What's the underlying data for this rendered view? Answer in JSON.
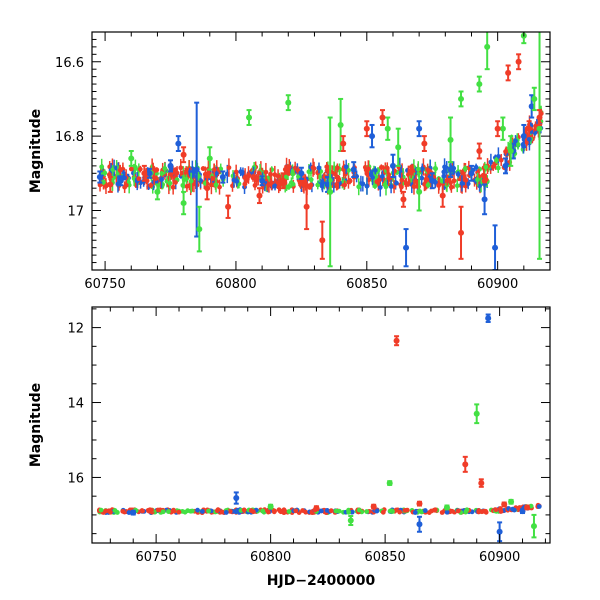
{
  "colors": {
    "blue": "#1f5fd8",
    "green": "#43e043",
    "red": "#f03c28"
  },
  "chart_data": [
    {
      "type": "scatter",
      "title": "",
      "xlabel": "",
      "ylabel": "Magnitude",
      "xlim": [
        60745,
        60920
      ],
      "ylim": [
        17.16,
        16.52
      ],
      "y_inverted": true,
      "grid": false,
      "error_bars": true,
      "xticks": [
        "60750",
        "60800",
        "60850",
        "60900"
      ],
      "xtick_values": [
        60750,
        60800,
        60850,
        60900
      ],
      "yticks": [
        "16.6",
        "16.8",
        "17"
      ],
      "ytick_values": [
        16.6,
        16.8,
        17.0
      ],
      "series": [
        {
          "color": "blue",
          "points": [
            [
              60748,
              16.91,
              0.015
            ],
            [
              60756,
              16.92,
              0.012
            ],
            [
              60767,
              16.9,
              0.012
            ],
            [
              60775,
              16.88,
              0.015
            ],
            [
              60778,
              16.82,
              0.02
            ],
            [
              60785,
              16.89,
              0.18
            ],
            [
              60795,
              16.91,
              0.015
            ],
            [
              60810,
              16.92,
              0.012
            ],
            [
              60825,
              16.9,
              0.015
            ],
            [
              60835,
              16.93,
              0.02
            ],
            [
              60845,
              16.89,
              0.02
            ],
            [
              60852,
              16.8,
              0.03
            ],
            [
              60860,
              16.88,
              0.03
            ],
            [
              60865,
              17.1,
              0.05
            ],
            [
              60870,
              16.78,
              0.02
            ],
            [
              60875,
              16.92,
              0.02
            ],
            [
              60882,
              16.89,
              0.02
            ],
            [
              60890,
              16.9,
              0.02
            ],
            [
              60895,
              16.97,
              0.04
            ],
            [
              60899,
              17.1,
              0.06
            ],
            [
              60903,
              16.88,
              0.02
            ],
            [
              60906,
              16.84,
              0.02
            ],
            [
              60910,
              16.8,
              0.03
            ],
            [
              60913,
              16.72,
              0.03
            ]
          ]
        },
        {
          "color": "green",
          "points": [
            [
              60760,
              16.86,
              0.02
            ],
            [
              60770,
              16.95,
              0.02
            ],
            [
              60780,
              16.98,
              0.03
            ],
            [
              60786,
              17.05,
              0.06
            ],
            [
              60790,
              16.86,
              0.03
            ],
            [
              60805,
              16.75,
              0.02
            ],
            [
              60820,
              16.71,
              0.02
            ],
            [
              60836,
              16.95,
              0.2
            ],
            [
              60840,
              16.77,
              0.07
            ],
            [
              60858,
              16.78,
              0.03
            ],
            [
              60862,
              16.83,
              0.05
            ],
            [
              60870,
              16.95,
              0.05
            ],
            [
              60882,
              16.81,
              0.06
            ],
            [
              60886,
              16.7,
              0.02
            ],
            [
              60893,
              16.66,
              0.02
            ],
            [
              60896,
              16.56,
              0.06
            ],
            [
              60902,
              16.78,
              0.03
            ],
            [
              60905,
              16.84,
              0.04
            ],
            [
              60910,
              16.53,
              0.02
            ],
            [
              60914,
              16.7,
              0.03
            ],
            [
              60916,
              16.78,
              0.35
            ]
          ]
        },
        {
          "color": "red",
          "points": [
            [
              60752,
              16.93,
              0.02
            ],
            [
              60765,
              16.9,
              0.02
            ],
            [
              60780,
              16.85,
              0.02
            ],
            [
              60789,
              16.94,
              0.03
            ],
            [
              60797,
              16.99,
              0.03
            ],
            [
              60809,
              16.96,
              0.02
            ],
            [
              60818,
              16.92,
              0.02
            ],
            [
              60827,
              16.99,
              0.06
            ],
            [
              60833,
              17.08,
              0.05
            ],
            [
              60841,
              16.82,
              0.02
            ],
            [
              60850,
              16.78,
              0.02
            ],
            [
              60856,
              16.75,
              0.02
            ],
            [
              60864,
              16.97,
              0.02
            ],
            [
              60872,
              16.82,
              0.02
            ],
            [
              60879,
              16.96,
              0.03
            ],
            [
              60886,
              17.06,
              0.07
            ],
            [
              60893,
              16.84,
              0.02
            ],
            [
              60900,
              16.78,
              0.02
            ],
            [
              60904,
              16.63,
              0.02
            ],
            [
              60908,
              16.6,
              0.02
            ],
            [
              60912,
              16.78,
              0.02
            ],
            [
              60916,
              16.75,
              0.02
            ]
          ]
        }
      ]
    },
    {
      "type": "scatter",
      "title": "",
      "xlabel": "HJD−2400000",
      "ylabel": "Magnitude",
      "xlim": [
        60722,
        60922
      ],
      "ylim": [
        17.75,
        11.45
      ],
      "y_inverted": true,
      "grid": false,
      "error_bars": true,
      "xticks": [
        "60750",
        "60800",
        "60850",
        "60900"
      ],
      "xtick_values": [
        60750,
        60800,
        60850,
        60900
      ],
      "yticks": [
        "12",
        "14",
        "16"
      ],
      "ytick_values": [
        12,
        14,
        16
      ],
      "series": [
        {
          "color": "blue",
          "points": [
            [
              60740,
              16.94,
              0.05
            ],
            [
              60785,
              16.55,
              0.15
            ],
            [
              60865,
              17.25,
              0.2
            ],
            [
              60895,
              11.75,
              0.1
            ],
            [
              60900,
              17.45,
              0.25
            ],
            [
              60910,
              16.9,
              0.05
            ]
          ]
        },
        {
          "color": "green",
          "points": [
            [
              60800,
              16.78,
              0.05
            ],
            [
              60835,
              17.15,
              0.12
            ],
            [
              60852,
              16.15,
              0.05
            ],
            [
              60877,
              16.8,
              0.05
            ],
            [
              60890,
              14.3,
              0.25
            ],
            [
              60905,
              16.65,
              0.05
            ],
            [
              60915,
              17.3,
              0.3
            ]
          ]
        },
        {
          "color": "red",
          "points": [
            [
              60820,
              16.82,
              0.05
            ],
            [
              60845,
              16.78,
              0.05
            ],
            [
              60855,
              12.35,
              0.12
            ],
            [
              60865,
              16.7,
              0.05
            ],
            [
              60885,
              15.65,
              0.2
            ],
            [
              60892,
              16.15,
              0.1
            ],
            [
              60902,
              16.72,
              0.05
            ],
            [
              60912,
              16.8,
              0.05
            ]
          ]
        }
      ]
    }
  ]
}
